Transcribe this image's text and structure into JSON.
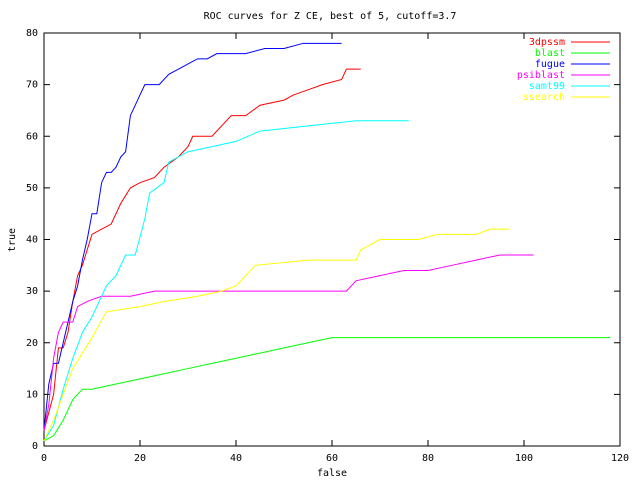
{
  "chart_data": {
    "type": "line",
    "title": "ROC curves for Z CE, best of 5, cutoff=3.7",
    "x_label": "false",
    "y_label": "true",
    "xlim": [
      0,
      120
    ],
    "ylim": [
      0,
      80
    ],
    "xticks": [
      0,
      20,
      40,
      60,
      80,
      100,
      120
    ],
    "yticks": [
      0,
      10,
      20,
      30,
      40,
      50,
      60,
      70,
      80
    ],
    "legend": "upper-right",
    "series": [
      {
        "name": "3dpssm",
        "color": "#ff0000",
        "x": [
          0,
          2,
          3,
          4,
          5,
          6,
          7,
          8,
          9,
          10,
          12,
          14,
          16,
          18,
          20,
          23,
          25,
          28,
          30,
          31,
          35,
          37,
          39,
          42,
          45,
          50,
          52,
          55,
          58,
          62,
          63,
          66
        ],
        "values": [
          3,
          10,
          19,
          19,
          22,
          28,
          33,
          35,
          38,
          41,
          42,
          43,
          47,
          50,
          51,
          52,
          54,
          56,
          58,
          60,
          60,
          62,
          64,
          64,
          66,
          67,
          68,
          69,
          70,
          71,
          73,
          73
        ]
      },
      {
        "name": "blast",
        "color": "#00ff00",
        "x": [
          0,
          2,
          4,
          6,
          8,
          10,
          15,
          20,
          25,
          30,
          35,
          40,
          45,
          50,
          55,
          60,
          118
        ],
        "values": [
          1,
          2,
          5,
          9,
          11,
          11,
          12,
          13,
          14,
          15,
          16,
          17,
          18,
          19,
          20,
          21,
          21
        ]
      },
      {
        "name": "fugue",
        "color": "#0000ff",
        "x": [
          0,
          1,
          2,
          3,
          4,
          5,
          6,
          7,
          8,
          9,
          10,
          11,
          12,
          13,
          14,
          15,
          16,
          17,
          18,
          19,
          20,
          21,
          22,
          23,
          24,
          26,
          28,
          30,
          32,
          34,
          36,
          38,
          42,
          46,
          50,
          54,
          58,
          62
        ],
        "values": [
          3,
          12,
          16,
          16,
          20,
          24,
          28,
          31,
          36,
          40,
          45,
          45,
          51,
          53,
          53,
          54,
          56,
          57,
          64,
          66,
          68,
          70,
          70,
          70,
          70,
          72,
          73,
          74,
          75,
          75,
          76,
          76,
          76,
          77,
          77,
          78,
          78,
          78
        ]
      },
      {
        "name": "psiblast",
        "color": "#ff00ff",
        "x": [
          0,
          1,
          2,
          3,
          4,
          6,
          7,
          9,
          12,
          18,
          23,
          40,
          63,
          65,
          70,
          75,
          80,
          85,
          90,
          95,
          102
        ],
        "values": [
          3,
          8,
          17,
          22,
          24,
          24,
          27,
          28,
          29,
          29,
          30,
          30,
          30,
          32,
          33,
          34,
          34,
          35,
          36,
          37,
          37
        ]
      },
      {
        "name": "samt99",
        "color": "#00ffff",
        "x": [
          0,
          2,
          4,
          6,
          8,
          10,
          13,
          15,
          17,
          19,
          21,
          22,
          25,
          26,
          30,
          35,
          40,
          45,
          55,
          65,
          76
        ],
        "values": [
          1,
          4,
          11,
          17,
          22,
          25,
          31,
          33,
          37,
          37,
          44,
          49,
          51,
          55,
          57,
          58,
          59,
          61,
          62,
          63,
          63
        ]
      },
      {
        "name": "ssearch",
        "color": "#ffff00",
        "x": [
          0,
          2,
          4,
          6,
          8,
          10,
          13,
          20,
          25,
          32,
          37,
          40,
          44,
          55,
          65,
          66,
          70,
          78,
          82,
          90,
          93,
          97
        ],
        "values": [
          1,
          5,
          10,
          15,
          18,
          21,
          26,
          27,
          28,
          29,
          30,
          31,
          35,
          36,
          36,
          38,
          40,
          40,
          41,
          41,
          42,
          42
        ]
      }
    ]
  }
}
